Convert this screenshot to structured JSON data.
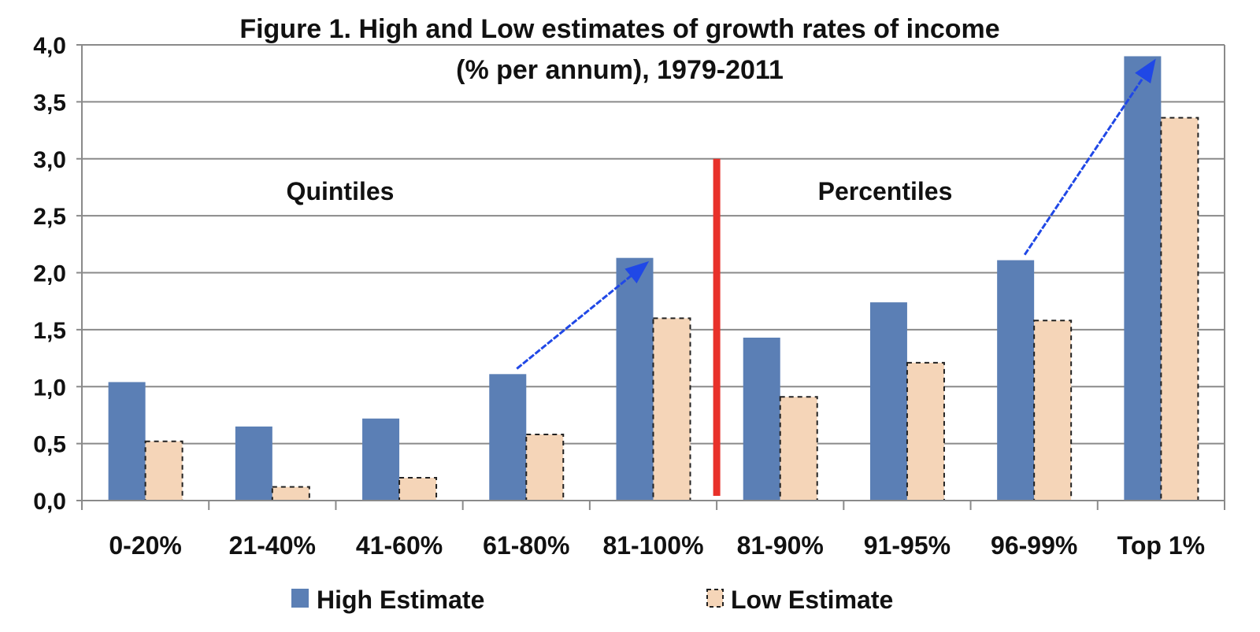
{
  "chart_data": {
    "type": "bar",
    "title": "Figure 1. High and Low estimates of growth rates of income",
    "subtitle": "(% per annum), 1979-2011",
    "xlabel": "",
    "ylabel": "",
    "ylim": [
      0,
      4
    ],
    "yticks": [
      "0,0",
      "0,5",
      "1,0",
      "1,5",
      "2,0",
      "2,5",
      "3,0",
      "3,5",
      "4,0"
    ],
    "ytick_values": [
      0,
      0.5,
      1,
      1.5,
      2,
      2.5,
      3,
      3.5,
      4
    ],
    "grid": true,
    "categories": [
      "0-20%",
      "21-40%",
      "41-60%",
      "61-80%",
      "81-100%",
      "81-90%",
      "91-95%",
      "96-99%",
      "Top 1%"
    ],
    "series": [
      {
        "name": "High Estimate",
        "color": "#5b7fb5",
        "style": "solid",
        "values": [
          1.04,
          0.65,
          0.72,
          1.11,
          2.13,
          1.43,
          1.74,
          2.11,
          3.9
        ]
      },
      {
        "name": "Low Estimate",
        "color": "#f5d5b8",
        "style": "dashed",
        "values": [
          0.52,
          0.12,
          0.2,
          0.58,
          1.6,
          0.91,
          1.21,
          1.58,
          3.36
        ]
      }
    ],
    "annotations": [
      {
        "text": "Quintiles",
        "position": "left-group"
      },
      {
        "text": "Percentiles",
        "position": "right-group"
      }
    ],
    "divider": {
      "color": "#e8312a",
      "between": "81-100% and 81-90%",
      "top_value": 3.0
    },
    "arrows": [
      {
        "from_category": "61-80%",
        "from_value": 1.13,
        "to_category": "81-100%",
        "to_value": 2.13,
        "color": "#2048e6"
      },
      {
        "from_category": "96-99%",
        "from_value": 2.13,
        "to_category": "Top 1%",
        "to_value": 3.9,
        "color": "#2048e6"
      }
    ],
    "legend_position": "bottom"
  }
}
